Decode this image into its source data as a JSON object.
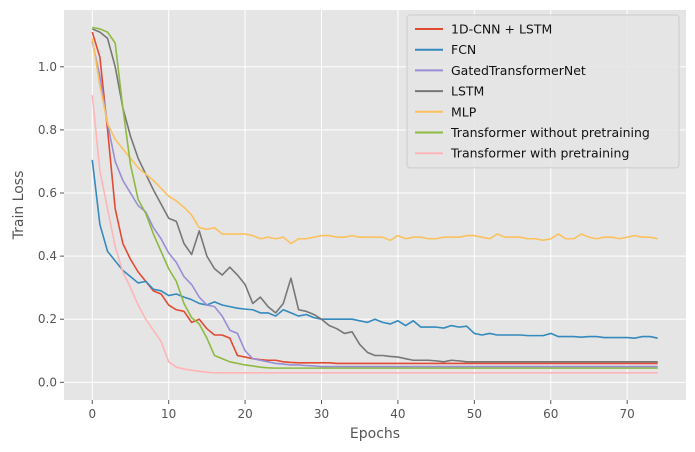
{
  "chart_data": {
    "type": "line",
    "title": "",
    "xlabel": "Epochs",
    "ylabel": "Train Loss",
    "xlim": [
      -3.7,
      77.7
    ],
    "ylim": [
      -0.056,
      1.18
    ],
    "xticks": [
      0,
      10,
      20,
      30,
      40,
      50,
      60,
      70
    ],
    "yticks": [
      0.0,
      0.2,
      0.4,
      0.6,
      0.8,
      1.0
    ],
    "ytick_labels": [
      "0.0",
      "0.2",
      "0.4",
      "0.6",
      "0.8",
      "1.0"
    ],
    "grid": true,
    "legend_position": "top-right",
    "x": [
      0,
      1,
      2,
      3,
      4,
      5,
      6,
      7,
      8,
      9,
      10,
      11,
      12,
      13,
      14,
      15,
      16,
      17,
      18,
      19,
      20,
      21,
      22,
      23,
      24,
      25,
      26,
      27,
      28,
      29,
      30,
      31,
      32,
      33,
      34,
      35,
      36,
      37,
      38,
      39,
      40,
      41,
      42,
      43,
      44,
      45,
      46,
      47,
      48,
      49,
      50,
      51,
      52,
      53,
      54,
      55,
      56,
      57,
      58,
      59,
      60,
      61,
      62,
      63,
      64,
      65,
      66,
      67,
      68,
      69,
      70,
      71,
      72,
      73,
      74
    ],
    "series": [
      {
        "name": "1D-CNN + LSTM",
        "color": "#e24a33",
        "values": [
          1.11,
          1.03,
          0.8,
          0.55,
          0.44,
          0.39,
          0.35,
          0.32,
          0.29,
          0.28,
          0.245,
          0.23,
          0.225,
          0.19,
          0.2,
          0.17,
          0.15,
          0.15,
          0.14,
          0.085,
          0.08,
          0.075,
          0.072,
          0.07,
          0.07,
          0.065,
          0.063,
          0.062,
          0.062,
          0.062,
          0.062,
          0.062,
          0.06,
          0.06,
          0.06,
          0.06,
          0.06,
          0.06,
          0.06,
          0.06,
          0.06,
          0.06,
          0.06,
          0.06,
          0.06,
          0.06,
          0.06,
          0.06,
          0.06,
          0.06,
          0.06,
          0.06,
          0.06,
          0.06,
          0.06,
          0.06,
          0.06,
          0.06,
          0.06,
          0.06,
          0.06,
          0.06,
          0.06,
          0.06,
          0.06,
          0.06,
          0.06,
          0.06,
          0.06,
          0.06,
          0.06,
          0.06,
          0.06,
          0.06,
          0.06
        ]
      },
      {
        "name": "FCN",
        "color": "#348abd",
        "values": [
          0.705,
          0.5,
          0.415,
          0.385,
          0.355,
          0.335,
          0.315,
          0.32,
          0.295,
          0.29,
          0.275,
          0.28,
          0.27,
          0.262,
          0.25,
          0.245,
          0.255,
          0.245,
          0.24,
          0.235,
          0.232,
          0.23,
          0.22,
          0.22,
          0.21,
          0.23,
          0.22,
          0.21,
          0.215,
          0.205,
          0.2,
          0.2,
          0.2,
          0.2,
          0.2,
          0.195,
          0.19,
          0.2,
          0.19,
          0.185,
          0.195,
          0.18,
          0.195,
          0.175,
          0.175,
          0.175,
          0.172,
          0.18,
          0.175,
          0.178,
          0.155,
          0.15,
          0.155,
          0.15,
          0.15,
          0.15,
          0.15,
          0.148,
          0.148,
          0.148,
          0.155,
          0.145,
          0.145,
          0.145,
          0.143,
          0.145,
          0.145,
          0.142,
          0.142,
          0.142,
          0.142,
          0.14,
          0.145,
          0.145,
          0.14
        ]
      },
      {
        "name": "GatedTransformerNet",
        "color": "#988ed5",
        "values": [
          1.08,
          0.97,
          0.82,
          0.7,
          0.64,
          0.6,
          0.56,
          0.54,
          0.49,
          0.455,
          0.41,
          0.38,
          0.335,
          0.31,
          0.27,
          0.245,
          0.24,
          0.21,
          0.165,
          0.155,
          0.1,
          0.075,
          0.07,
          0.065,
          0.06,
          0.058,
          0.055,
          0.055,
          0.053,
          0.052,
          0.05,
          0.05,
          0.05,
          0.05,
          0.05,
          0.05,
          0.05,
          0.05,
          0.05,
          0.05,
          0.05,
          0.05,
          0.05,
          0.05,
          0.05,
          0.05,
          0.05,
          0.05,
          0.05,
          0.05,
          0.05,
          0.05,
          0.05,
          0.05,
          0.05,
          0.05,
          0.05,
          0.05,
          0.05,
          0.05,
          0.05,
          0.05,
          0.05,
          0.05,
          0.05,
          0.05,
          0.05,
          0.05,
          0.05,
          0.05,
          0.05,
          0.05,
          0.05,
          0.05,
          0.05
        ]
      },
      {
        "name": "LSTM",
        "color": "#777777",
        "values": [
          1.12,
          1.11,
          1.09,
          1.0,
          0.87,
          0.78,
          0.71,
          0.66,
          0.61,
          0.565,
          0.52,
          0.51,
          0.44,
          0.405,
          0.48,
          0.4,
          0.36,
          0.34,
          0.365,
          0.34,
          0.31,
          0.25,
          0.27,
          0.24,
          0.22,
          0.25,
          0.33,
          0.23,
          0.225,
          0.215,
          0.2,
          0.18,
          0.17,
          0.155,
          0.16,
          0.12,
          0.095,
          0.085,
          0.085,
          0.082,
          0.08,
          0.075,
          0.07,
          0.07,
          0.07,
          0.068,
          0.065,
          0.07,
          0.068,
          0.065,
          0.065,
          0.065,
          0.065,
          0.065,
          0.065,
          0.065,
          0.065,
          0.065,
          0.065,
          0.065,
          0.065,
          0.065,
          0.065,
          0.065,
          0.065,
          0.065,
          0.065,
          0.065,
          0.065,
          0.065,
          0.065,
          0.065,
          0.065,
          0.065,
          0.065
        ]
      },
      {
        "name": "MLP",
        "color": "#fbc15e",
        "values": [
          1.09,
          0.94,
          0.82,
          0.77,
          0.74,
          0.71,
          0.68,
          0.66,
          0.64,
          0.615,
          0.59,
          0.575,
          0.555,
          0.53,
          0.49,
          0.485,
          0.49,
          0.47,
          0.47,
          0.47,
          0.47,
          0.465,
          0.455,
          0.46,
          0.455,
          0.46,
          0.44,
          0.455,
          0.455,
          0.46,
          0.465,
          0.465,
          0.46,
          0.46,
          0.465,
          0.46,
          0.46,
          0.46,
          0.46,
          0.45,
          0.465,
          0.455,
          0.46,
          0.46,
          0.455,
          0.455,
          0.46,
          0.46,
          0.46,
          0.465,
          0.465,
          0.46,
          0.455,
          0.47,
          0.46,
          0.46,
          0.46,
          0.455,
          0.455,
          0.45,
          0.455,
          0.47,
          0.455,
          0.455,
          0.47,
          0.46,
          0.455,
          0.46,
          0.46,
          0.455,
          0.46,
          0.465,
          0.46,
          0.46,
          0.455
        ]
      },
      {
        "name": "Transformer without pretraining",
        "color": "#8eba42",
        "values": [
          1.125,
          1.12,
          1.11,
          1.075,
          0.87,
          0.69,
          0.58,
          0.535,
          0.47,
          0.415,
          0.36,
          0.32,
          0.25,
          0.205,
          0.185,
          0.14,
          0.085,
          0.075,
          0.065,
          0.06,
          0.055,
          0.052,
          0.048,
          0.046,
          0.045,
          0.045,
          0.045,
          0.045,
          0.045,
          0.045,
          0.045,
          0.045,
          0.045,
          0.045,
          0.045,
          0.045,
          0.045,
          0.045,
          0.045,
          0.045,
          0.045,
          0.045,
          0.045,
          0.045,
          0.045,
          0.045,
          0.045,
          0.045,
          0.045,
          0.045,
          0.045,
          0.045,
          0.045,
          0.045,
          0.045,
          0.045,
          0.045,
          0.045,
          0.045,
          0.045,
          0.045,
          0.045,
          0.045,
          0.045,
          0.045,
          0.045,
          0.045,
          0.045,
          0.045,
          0.045,
          0.045,
          0.045,
          0.045,
          0.045,
          0.045
        ]
      },
      {
        "name": "Transformer with pretraining",
        "color": "#ffb5b8",
        "values": [
          0.91,
          0.67,
          0.55,
          0.43,
          0.35,
          0.3,
          0.245,
          0.2,
          0.165,
          0.13,
          0.065,
          0.048,
          0.042,
          0.038,
          0.035,
          0.032,
          0.03,
          0.03,
          0.03,
          0.03,
          0.03,
          0.03,
          0.03,
          0.03,
          0.03,
          0.03,
          0.03,
          0.03,
          0.03,
          0.03,
          0.03,
          0.03,
          0.03,
          0.03,
          0.03,
          0.03,
          0.03,
          0.03,
          0.03,
          0.03,
          0.03,
          0.03,
          0.03,
          0.03,
          0.03,
          0.03,
          0.03,
          0.03,
          0.03,
          0.03,
          0.03,
          0.03,
          0.03,
          0.03,
          0.03,
          0.03,
          0.03,
          0.03,
          0.03,
          0.03,
          0.03,
          0.03,
          0.03,
          0.03,
          0.03,
          0.03,
          0.03,
          0.03,
          0.03,
          0.03,
          0.03,
          0.03,
          0.03,
          0.03,
          0.03
        ]
      }
    ]
  }
}
